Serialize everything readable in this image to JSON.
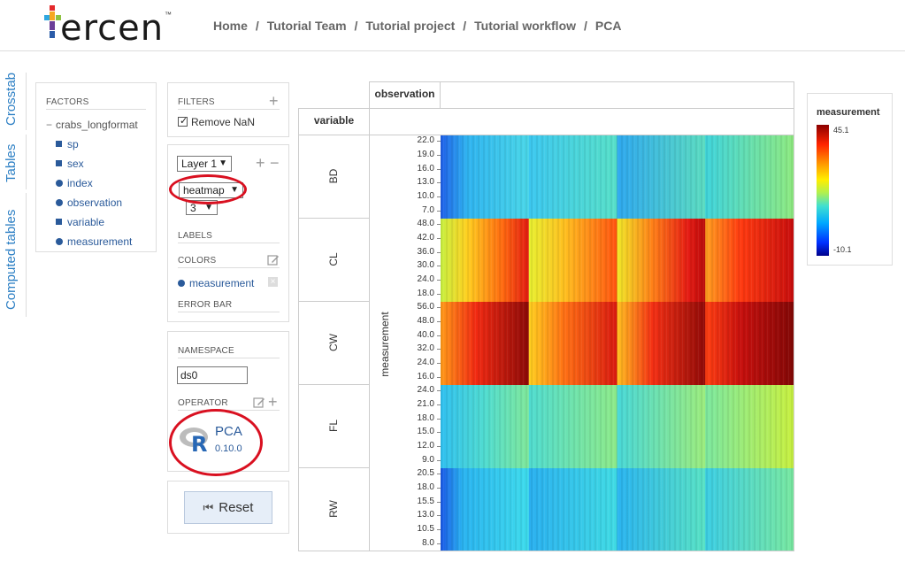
{
  "header": {
    "logo_text": "ercen",
    "logo_tm": "™",
    "breadcrumb": [
      "Home",
      "Tutorial Team",
      "Tutorial project",
      "Tutorial workflow",
      "PCA"
    ]
  },
  "side_tabs": [
    "Crosstab",
    "Tables",
    "Computed tables"
  ],
  "factors": {
    "title": "FACTORS",
    "root": "crabs_longformat",
    "items": [
      {
        "label": "sp",
        "kind": "square"
      },
      {
        "label": "sex",
        "kind": "square"
      },
      {
        "label": "index",
        "kind": "dot"
      },
      {
        "label": "observation",
        "kind": "dot"
      },
      {
        "label": "variable",
        "kind": "square"
      },
      {
        "label": "measurement",
        "kind": "dot"
      }
    ]
  },
  "filters": {
    "title": "FILTERS",
    "add": "+",
    "remove_nan": "Remove NaN"
  },
  "layers": {
    "layer_select": "Layer 1",
    "plot_type": "heatmap",
    "hidden_value": "3",
    "add": "+",
    "remove": "−",
    "labels": "LABELS",
    "colors": "COLORS",
    "color_factor": "measurement",
    "error_bar": "ERROR BAR"
  },
  "namespace": {
    "title": "NAMESPACE",
    "value": "ds0",
    "operator_title": "OPERATOR",
    "operator_name": "PCA",
    "operator_version": "0.10.0",
    "r_logo": "R"
  },
  "reset_label": "Reset",
  "crosstab": {
    "col_header": "observation",
    "row_header": "variable",
    "y_axis_label": "measurement",
    "rows": [
      {
        "name": "BD",
        "ticks": [
          "22.0",
          "19.0",
          "16.0",
          "13.0",
          "10.0",
          "7.0"
        ]
      },
      {
        "name": "CL",
        "ticks": [
          "48.0",
          "42.0",
          "36.0",
          "30.0",
          "24.0",
          "18.0"
        ]
      },
      {
        "name": "CW",
        "ticks": [
          "56.0",
          "48.0",
          "40.0",
          "32.0",
          "24.0",
          "16.0"
        ]
      },
      {
        "name": "FL",
        "ticks": [
          "24.0",
          "21.0",
          "18.0",
          "15.0",
          "12.0",
          "9.0"
        ]
      },
      {
        "name": "RW",
        "ticks": [
          "20.5",
          "18.0",
          "15.5",
          "13.0",
          "10.5",
          "8.0"
        ]
      }
    ]
  },
  "legend": {
    "title": "measurement",
    "max": "45.1",
    "min": "-10.1"
  },
  "colors": {
    "accent": "#2c7fc4",
    "highlight": "#d91020"
  }
}
